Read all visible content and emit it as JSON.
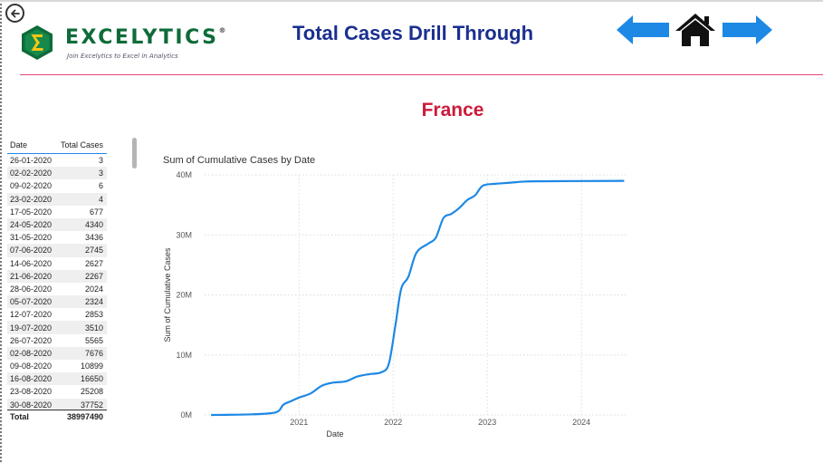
{
  "header": {
    "title": "Total Cases Drill Through",
    "logo_name": "EXCELYTICS",
    "logo_reg": "®",
    "logo_tagline": "Join Excelytics to Excel in Analytics"
  },
  "country": "France",
  "colors": {
    "accent": "#1e88e5",
    "title": "#1a2f8f",
    "country": "#cc1a3a",
    "divider": "#e0457b",
    "brand": "#0e6b3a"
  },
  "table": {
    "col_date": "Date",
    "col_total": "Total Cases",
    "rows": [
      {
        "date": "26-01-2020",
        "value": "3"
      },
      {
        "date": "02-02-2020",
        "value": "3"
      },
      {
        "date": "09-02-2020",
        "value": "6"
      },
      {
        "date": "23-02-2020",
        "value": "4"
      },
      {
        "date": "17-05-2020",
        "value": "677"
      },
      {
        "date": "24-05-2020",
        "value": "4340"
      },
      {
        "date": "31-05-2020",
        "value": "3436"
      },
      {
        "date": "07-06-2020",
        "value": "2745"
      },
      {
        "date": "14-06-2020",
        "value": "2627"
      },
      {
        "date": "21-06-2020",
        "value": "2267"
      },
      {
        "date": "28-06-2020",
        "value": "2024"
      },
      {
        "date": "05-07-2020",
        "value": "2324"
      },
      {
        "date": "12-07-2020",
        "value": "2853"
      },
      {
        "date": "19-07-2020",
        "value": "3510"
      },
      {
        "date": "26-07-2020",
        "value": "5565"
      },
      {
        "date": "02-08-2020",
        "value": "7676"
      },
      {
        "date": "09-08-2020",
        "value": "10899"
      },
      {
        "date": "16-08-2020",
        "value": "16650"
      },
      {
        "date": "23-08-2020",
        "value": "25208"
      },
      {
        "date": "30-08-2020",
        "value": "37752"
      }
    ],
    "total_label": "Total",
    "total_value": "38997490"
  },
  "chart_data": {
    "type": "line",
    "title": "Sum of Cumulative Cases by Date",
    "xlabel": "Date",
    "ylabel": "Sum of Cumulative Cases",
    "x_ticks": [
      "2021",
      "2022",
      "2023",
      "2024"
    ],
    "y_ticks": [
      "0M",
      "10M",
      "20M",
      "30M",
      "40M"
    ],
    "ylim": [
      0,
      40000000
    ],
    "xlim": [
      "2020-01-01",
      "2024-07-01"
    ],
    "grid": true,
    "series": [
      {
        "color": "#1e88e5",
        "points": [
          [
            "2020-01-26",
            0
          ],
          [
            "2020-07-01",
            100000
          ],
          [
            "2020-09-15",
            300000
          ],
          [
            "2020-10-15",
            700000
          ],
          [
            "2020-11-01",
            1700000
          ],
          [
            "2020-12-01",
            2300000
          ],
          [
            "2021-01-01",
            2900000
          ],
          [
            "2021-02-15",
            3600000
          ],
          [
            "2021-04-01",
            4900000
          ],
          [
            "2021-05-15",
            5400000
          ],
          [
            "2021-07-01",
            5600000
          ],
          [
            "2021-08-15",
            6400000
          ],
          [
            "2021-10-01",
            6800000
          ],
          [
            "2021-11-15",
            7100000
          ],
          [
            "2021-12-15",
            8500000
          ],
          [
            "2022-01-10",
            15000000
          ],
          [
            "2022-02-01",
            21000000
          ],
          [
            "2022-03-01",
            23000000
          ],
          [
            "2022-04-01",
            27000000
          ],
          [
            "2022-05-15",
            28500000
          ],
          [
            "2022-06-15",
            29500000
          ],
          [
            "2022-07-15",
            32800000
          ],
          [
            "2022-08-15",
            33500000
          ],
          [
            "2022-09-15",
            34500000
          ],
          [
            "2022-10-15",
            35800000
          ],
          [
            "2022-11-15",
            36600000
          ],
          [
            "2022-12-15",
            38200000
          ],
          [
            "2023-02-01",
            38500000
          ],
          [
            "2023-04-01",
            38700000
          ],
          [
            "2023-06-01",
            38900000
          ],
          [
            "2023-09-01",
            38950000
          ],
          [
            "2024-01-01",
            38980000
          ],
          [
            "2024-06-15",
            38997490
          ]
        ]
      }
    ]
  }
}
